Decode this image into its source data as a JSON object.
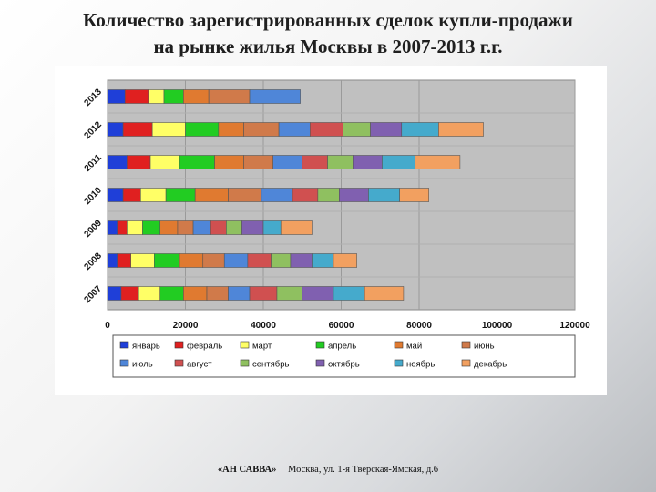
{
  "slide": {
    "title_line1": "Количество зарегистрированных сделок купли-продажи",
    "title_line2": "на рынке жилья Москвы в 2007-2013 г.г."
  },
  "footer": {
    "company": "«АН САВВА»",
    "address": "Москва, ул. 1-я Тверская-Ямская, д.6"
  },
  "chart_data": {
    "type": "bar",
    "orientation": "horizontal",
    "stacked": true,
    "title": "",
    "xlabel": "",
    "ylabel": "",
    "xlim": [
      0,
      120000
    ],
    "x_ticks": [
      "0",
      "20000",
      "40000",
      "60000",
      "80000",
      "100000",
      "120000"
    ],
    "categories": [
      "2007",
      "2008",
      "2009",
      "2010",
      "2011",
      "2012",
      "2013"
    ],
    "grid": true,
    "legend_position": "bottom",
    "series": [
      {
        "name": "январь",
        "color": "#1f3fd8",
        "values": [
          3500,
          2500,
          2500,
          4000,
          5000,
          4000,
          4500
        ]
      },
      {
        "name": "февраль",
        "color": "#e02020",
        "values": [
          4500,
          3500,
          2500,
          4500,
          6000,
          7500,
          6000
        ]
      },
      {
        "name": "март",
        "color": "#ffff66",
        "values": [
          5500,
          6000,
          4000,
          6500,
          7500,
          8500,
          4000
        ]
      },
      {
        "name": "апрель",
        "color": "#22cc22",
        "values": [
          6000,
          6500,
          4500,
          7500,
          9000,
          8500,
          5000
        ]
      },
      {
        "name": "май",
        "color": "#e07a30",
        "values": [
          6000,
          6000,
          4500,
          8500,
          7500,
          6500,
          6500
        ]
      },
      {
        "name": "июнь",
        "color": "#d07a4a",
        "values": [
          5500,
          5500,
          4000,
          8500,
          7500,
          9000,
          10500
        ]
      },
      {
        "name": "июль",
        "color": "#4f86d8",
        "values": [
          5500,
          6000,
          4500,
          8000,
          7500,
          8000,
          13000
        ]
      },
      {
        "name": "август",
        "color": "#d05050",
        "values": [
          7000,
          6000,
          4000,
          6500,
          6500,
          8500,
          0
        ]
      },
      {
        "name": "сентябрь",
        "color": "#8fc060",
        "values": [
          6500,
          5000,
          4000,
          5500,
          6500,
          7000,
          0
        ]
      },
      {
        "name": "октябрь",
        "color": "#8060b0",
        "values": [
          8000,
          5500,
          5500,
          7500,
          7500,
          8000,
          0
        ]
      },
      {
        "name": "ноябрь",
        "color": "#45aacc",
        "values": [
          8000,
          5500,
          4500,
          8000,
          8500,
          9500,
          0
        ]
      },
      {
        "name": "декабрь",
        "color": "#f2a060",
        "values": [
          10000,
          6000,
          8000,
          7500,
          11500,
          11500,
          0
        ]
      }
    ]
  }
}
